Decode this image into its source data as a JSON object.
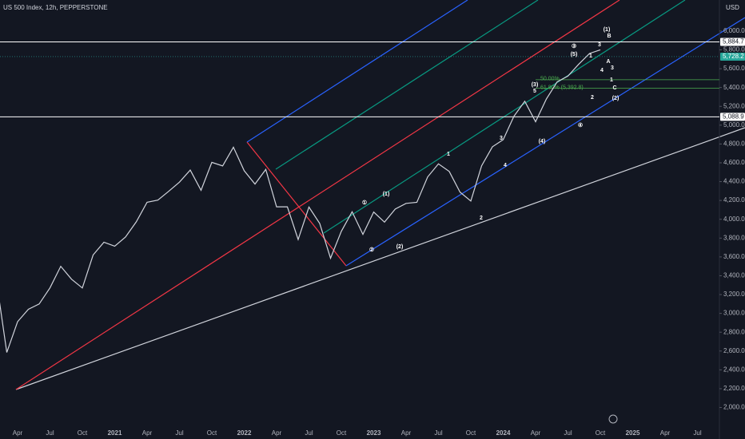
{
  "chart_data": {
    "type": "line",
    "title": "US 500 Index, 12h, PEPPERSTONE",
    "currency": "USD",
    "categories": [
      null,
      null,
      "Apr",
      null,
      null,
      "Jul",
      null,
      null,
      "Oct",
      null,
      null,
      "2021",
      null,
      null,
      "Apr",
      null,
      null,
      "Jul",
      null,
      null,
      "Oct",
      null,
      null,
      "2022",
      null,
      null,
      "Apr",
      null,
      null,
      "Jul",
      null,
      null,
      "Oct",
      null,
      null,
      "2023",
      null,
      null,
      "Apr",
      null,
      null,
      "Jul",
      null,
      null,
      "Oct",
      null,
      null,
      "2024",
      null,
      null,
      "Apr",
      null,
      null,
      "Jul",
      null,
      null,
      "Oct",
      null,
      null,
      "2025",
      null,
      null,
      "Apr",
      null,
      null,
      "Jul"
    ],
    "values": [
      3380,
      2585,
      2912,
      3044,
      3100,
      3271,
      3500,
      3363,
      3270,
      3621,
      3756,
      3714,
      3811,
      3973,
      4181,
      4204,
      4297,
      4395,
      4523,
      4308,
      4605,
      4567,
      4766,
      4516,
      4374,
      4530,
      4132,
      4132,
      3785,
      4130,
      3955,
      3586,
      3872,
      4080,
      3840,
      4077,
      3970,
      4109,
      4169,
      4180,
      4450,
      4589,
      4508,
      4288,
      4194,
      4568,
      4770,
      4846,
      5096,
      5254,
      5036,
      5278,
      5460,
      5522,
      5648,
      5762,
      5800,
      null,
      null,
      null,
      null,
      null,
      null,
      null,
      null,
      null
    ],
    "color": "#d1d4dc",
    "ylim": [
      1750,
      6330
    ],
    "yticks": [
      {
        "value": 2000,
        "label": "2,000.0"
      },
      {
        "value": 2200,
        "label": "2,200.0"
      },
      {
        "value": 2400,
        "label": "2,400.0"
      },
      {
        "value": 2600,
        "label": "2,600.0"
      },
      {
        "value": 2800,
        "label": "2,800.0"
      },
      {
        "value": 3000,
        "label": "3,000.0"
      },
      {
        "value": 3200,
        "label": "3,200.0"
      },
      {
        "value": 3400,
        "label": "3,400.0"
      },
      {
        "value": 3600,
        "label": "3,600.0"
      },
      {
        "value": 3800,
        "label": "3,800.0"
      },
      {
        "value": 4000,
        "label": "4,000.0"
      },
      {
        "value": 4200,
        "label": "4,200.0"
      },
      {
        "value": 4400,
        "label": "4,400.0"
      },
      {
        "value": 4600,
        "label": "4,600.0"
      },
      {
        "value": 4800,
        "label": "4,800.0"
      },
      {
        "value": 5000,
        "label": "5,000.0"
      },
      {
        "value": 5200,
        "label": "5,200.0"
      },
      {
        "value": 5400,
        "label": "5,400.0"
      },
      {
        "value": 5600,
        "label": "5,600.0"
      },
      {
        "value": 5800,
        "label": "5,800.0"
      },
      {
        "value": 6000,
        "label": "6,000.0"
      }
    ],
    "price_lines": [
      {
        "value": 5884.7,
        "label": "5,884.7",
        "color": "#ffffff"
      },
      {
        "value": 5728.2,
        "label": "5,728.2",
        "color": "#26a69a"
      },
      {
        "value": 5088.9,
        "label": "5,088.9",
        "color": "#ffffff"
      }
    ],
    "fib_levels": [
      {
        "value": 5483,
        "label": "50.00%"
      },
      {
        "value": 5392.8,
        "label": "61.80% (5,392.8)"
      }
    ],
    "annotations": [
      "1",
      "3",
      "4",
      "(4)",
      "(3)",
      "5",
      "③",
      "(5)",
      "1",
      "3",
      "4",
      "2",
      "④",
      "(1)",
      "B",
      "A",
      "3",
      "C",
      "(2)",
      "①",
      "(1)",
      "②",
      "(2)",
      "2",
      "1"
    ]
  }
}
